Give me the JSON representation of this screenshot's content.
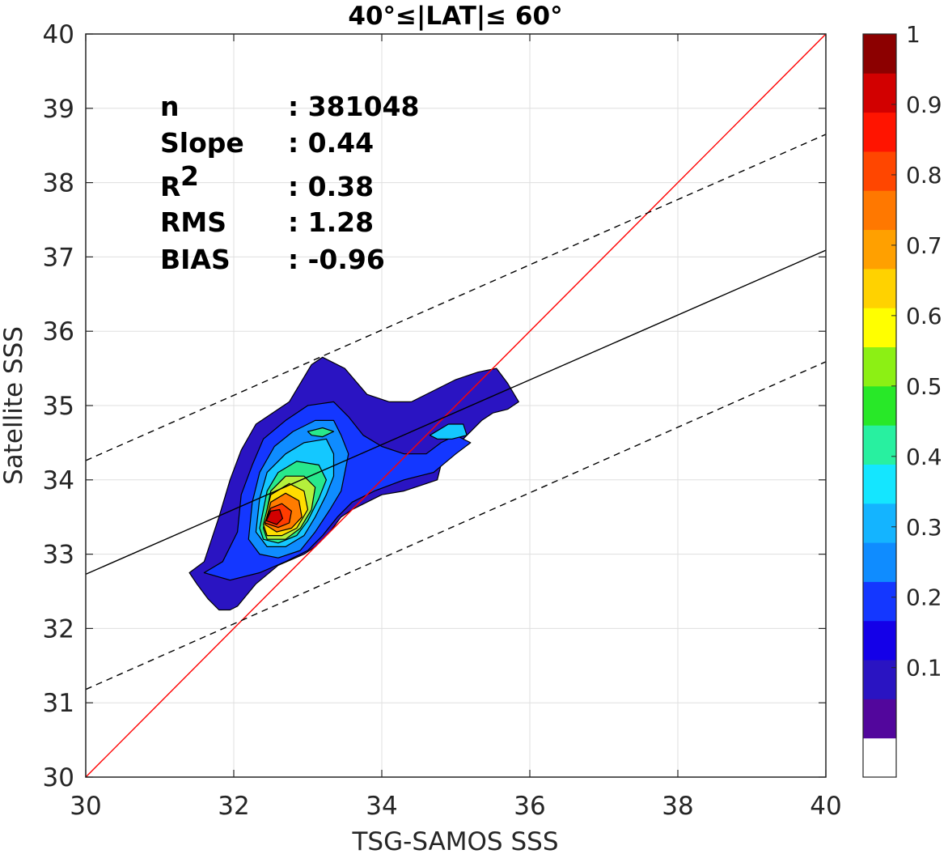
{
  "chart_data": {
    "type": "contour",
    "title": "40°≤|LAT|≤ 60°",
    "xlabel": "TSG-SAMOS SSS",
    "ylabel": "Satellite SSS",
    "xlim": [
      30,
      40
    ],
    "ylim": [
      30,
      40
    ],
    "xticks": [
      "30",
      "32",
      "34",
      "36",
      "38",
      "40"
    ],
    "yticks": [
      "30",
      "31",
      "32",
      "33",
      "34",
      "35",
      "36",
      "37",
      "38",
      "39",
      "40"
    ],
    "grid": true,
    "stats": [
      {
        "name": "n",
        "value": ": 381048"
      },
      {
        "name": "Slope",
        "value": ": 0.44"
      },
      {
        "name": "R",
        "sup": "2",
        "value": ": 0.38"
      },
      {
        "name": "RMS",
        "value": ": 1.28"
      },
      {
        "name": "BIAS",
        "value": ": -0.96"
      }
    ],
    "lines": {
      "identity": {
        "x": [
          30,
          40
        ],
        "y": [
          30,
          40
        ],
        "color": "#ff0000"
      },
      "fit": {
        "x": [
          30,
          40
        ],
        "y": [
          32.73,
          37.09
        ],
        "color": "#000000"
      },
      "upper_bound": {
        "x": [
          30,
          40
        ],
        "y": [
          34.26,
          38.65
        ],
        "color": "#000000",
        "dash": true
      },
      "lower_bound": {
        "x": [
          30,
          40
        ],
        "y": [
          31.18,
          35.59
        ],
        "color": "#000000",
        "dash": true
      }
    },
    "density_peak": {
      "x": 32.55,
      "y": 33.5,
      "value": 1.0
    },
    "contour_levels": [
      {
        "level": 0.05,
        "color": "#2a14c2",
        "points": [
          [
            31.4,
            32.75
          ],
          [
            31.6,
            32.9
          ],
          [
            31.8,
            33.5
          ],
          [
            31.95,
            34.0
          ],
          [
            32.1,
            34.4
          ],
          [
            32.3,
            34.75
          ],
          [
            32.75,
            35.05
          ],
          [
            33.05,
            35.55
          ],
          [
            33.2,
            35.65
          ],
          [
            33.5,
            35.5
          ],
          [
            33.8,
            35.15
          ],
          [
            34.1,
            35.05
          ],
          [
            34.4,
            35.05
          ],
          [
            34.7,
            35.2
          ],
          [
            35.0,
            35.35
          ],
          [
            35.3,
            35.45
          ],
          [
            35.55,
            35.5
          ],
          [
            35.7,
            35.3
          ],
          [
            35.85,
            35.05
          ],
          [
            35.7,
            34.95
          ],
          [
            35.5,
            34.9
          ],
          [
            35.35,
            34.8
          ],
          [
            35.1,
            34.55
          ],
          [
            34.9,
            34.45
          ],
          [
            34.8,
            34.35
          ],
          [
            34.8,
            34.2
          ],
          [
            34.75,
            34.0
          ],
          [
            34.6,
            33.95
          ],
          [
            34.3,
            33.85
          ],
          [
            34.0,
            33.8
          ],
          [
            33.8,
            33.7
          ],
          [
            33.6,
            33.6
          ],
          [
            33.45,
            33.5
          ],
          [
            33.3,
            33.3
          ],
          [
            33.1,
            33.1
          ],
          [
            32.95,
            33.0
          ],
          [
            32.6,
            32.85
          ],
          [
            32.3,
            32.6
          ],
          [
            32.05,
            32.3
          ],
          [
            31.95,
            32.25
          ],
          [
            31.8,
            32.25
          ],
          [
            31.65,
            32.4
          ],
          [
            31.5,
            32.6
          ]
        ]
      },
      {
        "level": 0.15,
        "color": "#1437ff",
        "points": [
          [
            31.6,
            32.75
          ],
          [
            31.85,
            32.9
          ],
          [
            32.05,
            33.3
          ],
          [
            32.1,
            33.8
          ],
          [
            32.25,
            34.2
          ],
          [
            32.4,
            34.55
          ],
          [
            32.7,
            34.8
          ],
          [
            33.0,
            35.0
          ],
          [
            33.35,
            35.05
          ],
          [
            33.55,
            34.85
          ],
          [
            33.75,
            34.6
          ],
          [
            34.0,
            34.45
          ],
          [
            34.3,
            34.35
          ],
          [
            34.6,
            34.35
          ],
          [
            34.8,
            34.5
          ],
          [
            35.0,
            34.6
          ],
          [
            35.2,
            34.5
          ],
          [
            35.0,
            34.35
          ],
          [
            34.7,
            34.1
          ],
          [
            34.3,
            34.0
          ],
          [
            33.9,
            33.85
          ],
          [
            33.6,
            33.7
          ],
          [
            33.4,
            33.5
          ],
          [
            33.2,
            33.25
          ],
          [
            33.0,
            33.05
          ],
          [
            32.7,
            32.9
          ],
          [
            32.35,
            32.75
          ],
          [
            31.95,
            32.65
          ]
        ]
      },
      {
        "level": 0.25,
        "color": "#0f8cff",
        "points": [
          [
            32.2,
            33.2
          ],
          [
            32.25,
            33.7
          ],
          [
            32.35,
            34.1
          ],
          [
            32.55,
            34.45
          ],
          [
            32.8,
            34.65
          ],
          [
            33.1,
            34.8
          ],
          [
            33.35,
            34.8
          ],
          [
            33.45,
            34.6
          ],
          [
            33.55,
            34.35
          ],
          [
            33.5,
            34.1
          ],
          [
            33.45,
            33.85
          ],
          [
            33.3,
            33.6
          ],
          [
            33.1,
            33.3
          ],
          [
            32.9,
            33.05
          ],
          [
            32.6,
            32.95
          ],
          [
            32.35,
            33.0
          ]
        ]
      },
      {
        "level": 0.35,
        "color": "#14c8ff",
        "points": [
          [
            32.3,
            33.3
          ],
          [
            32.35,
            33.75
          ],
          [
            32.45,
            34.1
          ],
          [
            32.7,
            34.35
          ],
          [
            32.95,
            34.5
          ],
          [
            33.25,
            34.55
          ],
          [
            33.35,
            34.35
          ],
          [
            33.35,
            34.05
          ],
          [
            33.25,
            33.8
          ],
          [
            33.1,
            33.5
          ],
          [
            32.95,
            33.25
          ],
          [
            32.7,
            33.1
          ],
          [
            32.45,
            33.1
          ]
        ]
      },
      {
        "level": 0.45,
        "color": "#28e88c",
        "points": [
          [
            32.35,
            33.35
          ],
          [
            32.45,
            33.85
          ],
          [
            32.6,
            34.1
          ],
          [
            32.85,
            34.25
          ],
          [
            33.15,
            34.2
          ],
          [
            33.25,
            34.0
          ],
          [
            33.15,
            33.75
          ],
          [
            33.0,
            33.45
          ],
          [
            32.85,
            33.25
          ],
          [
            32.6,
            33.15
          ],
          [
            32.4,
            33.2
          ]
        ]
      },
      {
        "level": 0.55,
        "color": "#b4f03c",
        "points": [
          [
            32.4,
            33.35
          ],
          [
            32.5,
            33.85
          ],
          [
            32.7,
            34.05
          ],
          [
            32.95,
            34.05
          ],
          [
            33.1,
            33.9
          ],
          [
            33.05,
            33.6
          ],
          [
            32.9,
            33.35
          ],
          [
            32.7,
            33.2
          ],
          [
            32.45,
            33.2
          ]
        ]
      },
      {
        "level": 0.65,
        "color": "#ffdd00",
        "points": [
          [
            32.4,
            33.4
          ],
          [
            32.5,
            33.8
          ],
          [
            32.75,
            33.95
          ],
          [
            32.95,
            33.85
          ],
          [
            33.0,
            33.6
          ],
          [
            32.85,
            33.35
          ],
          [
            32.65,
            33.25
          ],
          [
            32.45,
            33.25
          ]
        ]
      },
      {
        "level": 0.75,
        "color": "#ff7c00",
        "points": [
          [
            32.42,
            33.4
          ],
          [
            32.5,
            33.7
          ],
          [
            32.7,
            33.82
          ],
          [
            32.88,
            33.72
          ],
          [
            32.92,
            33.5
          ],
          [
            32.78,
            33.35
          ],
          [
            32.58,
            33.3
          ]
        ]
      },
      {
        "level": 0.85,
        "color": "#ff3c00",
        "points": [
          [
            32.42,
            33.42
          ],
          [
            32.5,
            33.62
          ],
          [
            32.65,
            33.68
          ],
          [
            32.78,
            33.58
          ],
          [
            32.75,
            33.42
          ],
          [
            32.6,
            33.36
          ]
        ]
      },
      {
        "level": 0.95,
        "color": "#d20000",
        "points": [
          [
            32.44,
            33.45
          ],
          [
            32.5,
            33.58
          ],
          [
            32.62,
            33.6
          ],
          [
            32.66,
            33.48
          ],
          [
            32.58,
            33.4
          ]
        ]
      },
      {
        "level": 0.3,
        "color": "#14c8ff",
        "points": [
          [
            34.65,
            34.6
          ],
          [
            34.9,
            34.75
          ],
          [
            35.1,
            34.75
          ],
          [
            35.15,
            34.6
          ],
          [
            34.95,
            34.55
          ],
          [
            34.75,
            34.55
          ]
        ]
      },
      {
        "level": 0.45,
        "color": "#28e88c",
        "points": [
          [
            33.0,
            34.65
          ],
          [
            33.2,
            34.7
          ],
          [
            33.35,
            34.65
          ],
          [
            33.2,
            34.58
          ],
          [
            33.05,
            34.6
          ]
        ]
      }
    ],
    "colorbar": {
      "ticks": [
        "0.1",
        "0.2",
        "0.3",
        "0.4",
        "0.5",
        "0.6",
        "0.7",
        "0.8",
        "0.9",
        "1"
      ],
      "colors": [
        "#ffffff",
        "#52069c",
        "#2a14c2",
        "#1400e8",
        "#1437ff",
        "#0f8cff",
        "#14b4ff",
        "#14e6ff",
        "#28f0a0",
        "#28e828",
        "#8cf014",
        "#ffff00",
        "#ffd200",
        "#ffa000",
        "#ff7800",
        "#ff4600",
        "#ff1400",
        "#d20000",
        "#8c0000"
      ]
    }
  }
}
